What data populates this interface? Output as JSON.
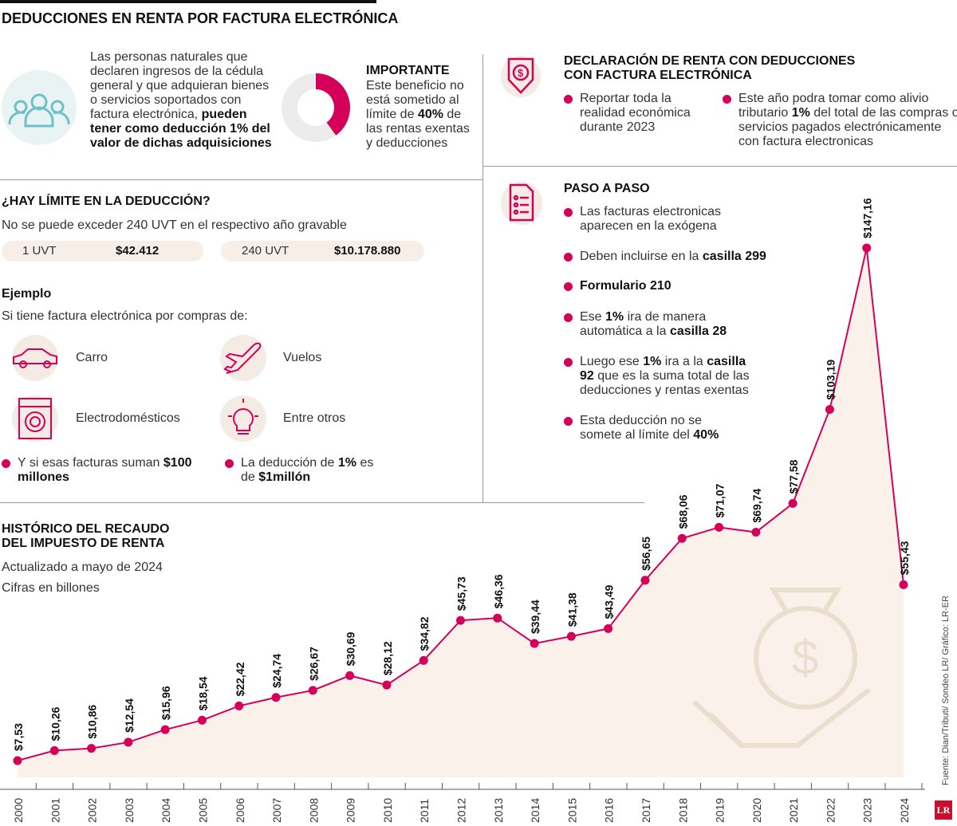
{
  "title": "DEDUCCIONES EN RENTA POR FACTURA ELECTRÓNICA",
  "intro": {
    "text": "Las personas naturales que declaren ingresos de la cédula general y que adquieran bienes o servicios soportados con factura electrónica,",
    "bold": "pueden tener como deducción 1% del valor de dichas adquisiciones"
  },
  "importante": {
    "title": "IMPORTANTE",
    "t1": "Este beneficio no está sometido al límite de ",
    "b": "40%",
    "t2": " de las rentas exentas y deducciones",
    "donut_fraction": 0.4
  },
  "limite": {
    "title": "¿HAY LÍMITE EN LA DEDUCCIÓN?",
    "subtitle": "No se puede exceder 240 UVT en el respectivo año gravable",
    "uvt1_label": "1 UVT",
    "uvt1_value": "$42.412",
    "uvt240_label": "240 UVT",
    "uvt240_value": "$10.178.880"
  },
  "ejemplo": {
    "title": "Ejemplo",
    "subtitle": "Si tiene factura electrónica por compras de:",
    "items": [
      "Carro",
      "Vuelos",
      "Electrodomésticos",
      "Entre otros"
    ],
    "b1_t": "Y si esas facturas suman ",
    "b1_b": "$100 millones",
    "b2_t": "La deducción de ",
    "b2_b": "1%",
    "b2_t2": " es de ",
    "b2_b2": "$1millón"
  },
  "declaracion": {
    "title1": "DECLARACIÓN DE RENTA CON DEDUCCIONES",
    "title2": "CON FACTURA ELECTRÓNICA",
    "b1": "Reportar toda la realidad económica durante 2023",
    "b2_t": "Este año podra tomar como alivio tributario ",
    "b2_b": "1%",
    "b2_t2": " del total de las compras o servicios pagados electrónicamente con factura electronicas"
  },
  "paso": {
    "title": "PASO A PASO",
    "s1": "Las facturas electronicas aparecen en la exógena",
    "s2_t": "Deben incluirse en la ",
    "s2_b": "casilla 299",
    "s3": "Formulario 210",
    "s4_t": "Ese ",
    "s4_b": "1%",
    "s4_t2": " ira de manera automática a la ",
    "s4_b2": "casilla 28",
    "s5_t": "Luego ese ",
    "s5_b": "1%",
    "s5_t2": " ira a la ",
    "s5_b2": "casilla 92",
    "s5_t3": " que es la suma total de las deducciones y rentas exentas",
    "s6_t": "Esta deducción no se somete al límite del ",
    "s6_b": "40%"
  },
  "chart_data": {
    "type": "area",
    "title": "HISTÓRICO DEL RECAUDO DEL IMPUESTO DE RENTA",
    "title1": "HISTÓRICO DEL RECAUDO",
    "title2": "DEL IMPUESTO DE RENTA",
    "subtitle1": "Actualizado a mayo de 2024",
    "subtitle2": "Cifras en billones",
    "x": [
      "2000",
      "2001",
      "2002",
      "2003",
      "2004",
      "2005",
      "2006",
      "2007",
      "2008",
      "2009",
      "2010",
      "2011",
      "2012",
      "2013",
      "2014",
      "2015",
      "2016",
      "2017",
      "2018",
      "2019",
      "2020",
      "2021",
      "2022",
      "2023",
      "2024"
    ],
    "values": [
      7.53,
      10.26,
      10.86,
      12.54,
      15.96,
      18.54,
      22.42,
      24.74,
      26.67,
      30.69,
      28.12,
      34.82,
      45.73,
      46.36,
      39.44,
      41.38,
      43.49,
      56.65,
      68.06,
      71.07,
      69.74,
      77.58,
      103.19,
      147.16,
      55.43
    ],
    "labels": [
      "$7,53",
      "$10,26",
      "$10,86",
      "$12,54",
      "$15,96",
      "$18,54",
      "$22,42",
      "$24,74",
      "$26,67",
      "$30,69",
      "$28,12",
      "$34,82",
      "$45,73",
      "$46,36",
      "$39,44",
      "$41,38",
      "$43,49",
      "$56,65",
      "$68,06",
      "$71,07",
      "$69,74",
      "$77,58",
      "$103,19",
      "$147,16",
      "$55,43"
    ],
    "color": "#d4005a",
    "fill": "#f9f1ea"
  },
  "source": "Fuente: Dian/Tributi/ Sondeo LR/ Gráfico: LR-ER",
  "logo": "LR"
}
